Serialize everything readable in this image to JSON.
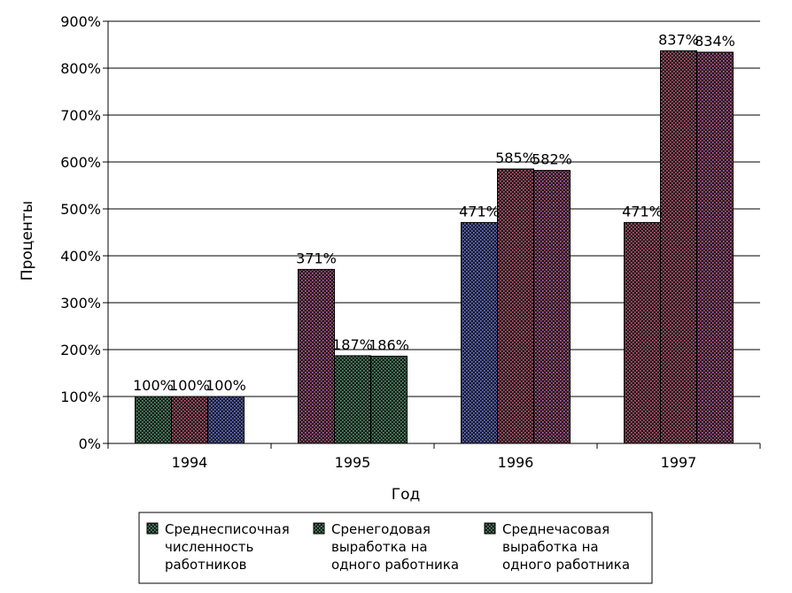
{
  "chart_data": {
    "type": "bar",
    "title": "",
    "xlabel": "Год",
    "ylabel": "Проценты",
    "categories": [
      "1994",
      "1995",
      "1996",
      "1997"
    ],
    "series": [
      {
        "name": "Среднесписочная численность работников",
        "values": [
          100,
          371,
          471,
          471
        ]
      },
      {
        "name": "Сренегодовая выработка на одного работника",
        "values": [
          100,
          187,
          585,
          837
        ]
      },
      {
        "name": "Среднечасовая выработка на одного работника",
        "values": [
          100,
          186,
          582,
          834
        ]
      }
    ],
    "data_labels": [
      [
        "100%",
        "371%",
        "471%",
        "471%"
      ],
      [
        "100%",
        "187%",
        "585%",
        "837%"
      ],
      [
        "100%",
        "186%",
        "582%",
        "834%"
      ]
    ],
    "ylim": [
      0,
      900
    ],
    "yticks": [
      0,
      100,
      200,
      300,
      400,
      500,
      600,
      700,
      800,
      900
    ],
    "ytick_labels": [
      "0%",
      "100%",
      "200%",
      "300%",
      "400%",
      "500%",
      "600%",
      "700%",
      "800%",
      "900%"
    ],
    "grid": true,
    "legend_position": "bottom",
    "legend": [
      [
        "Среднесписочная",
        "численность",
        "работников"
      ],
      [
        "Сренегодовая",
        "выработка на",
        "одного работника"
      ],
      [
        "Среднечасовая",
        "выработка на",
        "одного работника"
      ]
    ],
    "colors": {
      "bar_dark": "#1a1a1a",
      "dot_red": "#d0587a",
      "dot_blue": "#6a7ad8",
      "dot_green": "#4fa070",
      "dot_magenta": "#d060c0"
    }
  }
}
